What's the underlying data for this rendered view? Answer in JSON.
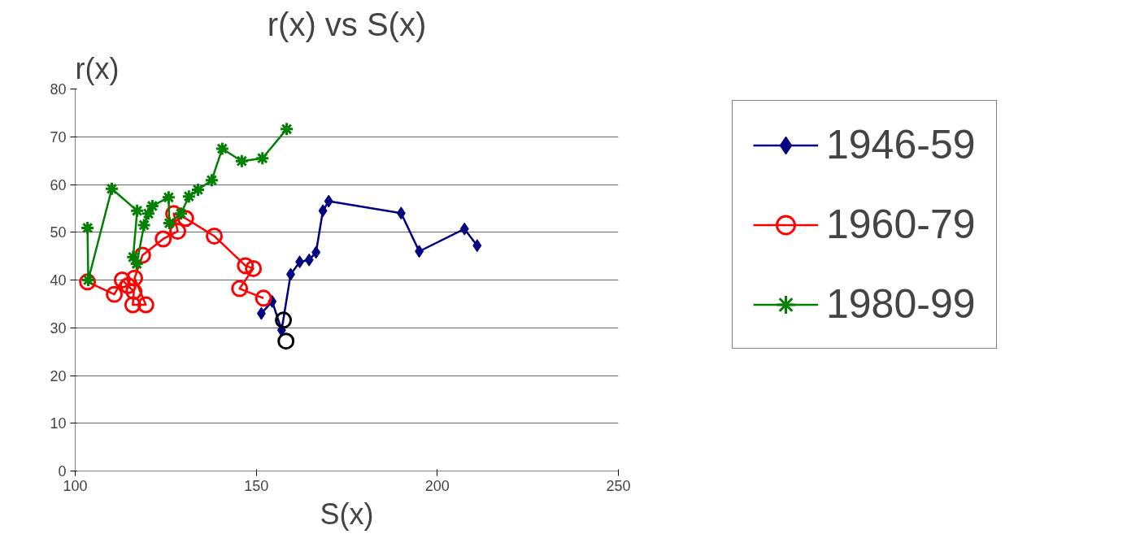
{
  "chart_data": {
    "type": "line",
    "title": "r(x) vs S(x)",
    "xlabel": "S(x)",
    "ylabel": "r(x)",
    "xlim": [
      100,
      250
    ],
    "xticks": [
      100,
      150,
      200,
      250
    ],
    "ylim": [
      0,
      80
    ],
    "yticks": [
      0,
      10,
      20,
      30,
      40,
      50,
      60,
      70,
      80
    ],
    "grid": "y",
    "legend": "right",
    "series": [
      {
        "name": "1946-59",
        "color": "#000080",
        "marker": "diamond",
        "x": [
          151.4,
          154.4,
          157,
          159.5,
          162,
          164.6,
          166.5,
          168.4,
          170,
          190,
          195,
          207.5,
          211
        ],
        "values": [
          33,
          35.5,
          29.5,
          41.2,
          43.8,
          44.2,
          45.8,
          54.5,
          56.5,
          54,
          46,
          50.7,
          47.2
        ]
      },
      {
        "name": "1960-79",
        "color": "#ff0000",
        "marker": "circle",
        "x": [
          103.4,
          110.8,
          113,
          114.6,
          116.2,
          115.9,
          119.5,
          116.4,
          118.6,
          124.3,
          128.3,
          127.2,
          130.5,
          138.4,
          147,
          149.2,
          145.4,
          152
        ],
        "values": [
          39.6,
          37,
          40,
          38.8,
          37.6,
          34.8,
          34.8,
          40.4,
          45.2,
          48.6,
          50.2,
          53.9,
          52.9,
          49.2,
          43,
          42.4,
          38.2,
          36.2
        ]
      },
      {
        "name": "1980-99",
        "color": "#008000",
        "marker": "cross",
        "x": [
          103.4,
          103.6,
          110.1,
          117.1,
          116,
          117,
          119,
          120.2,
          121.3,
          125.8,
          126,
          129.2,
          131.4,
          133.9,
          137.7,
          140.6,
          146,
          151.7,
          158.4
        ],
        "values": [
          50.9,
          40,
          59.1,
          54.5,
          44.8,
          43.4,
          51.5,
          53.9,
          55.5,
          57.3,
          51.9,
          53.9,
          57.5,
          58.9,
          60.9,
          67.5,
          64.9,
          65.5,
          71.6
        ]
      },
      {
        "type": "scatter",
        "color": "#000000",
        "marker": "circle",
        "x": [
          157.5,
          158.2
        ],
        "values": [
          31.6,
          27.2
        ]
      }
    ]
  }
}
